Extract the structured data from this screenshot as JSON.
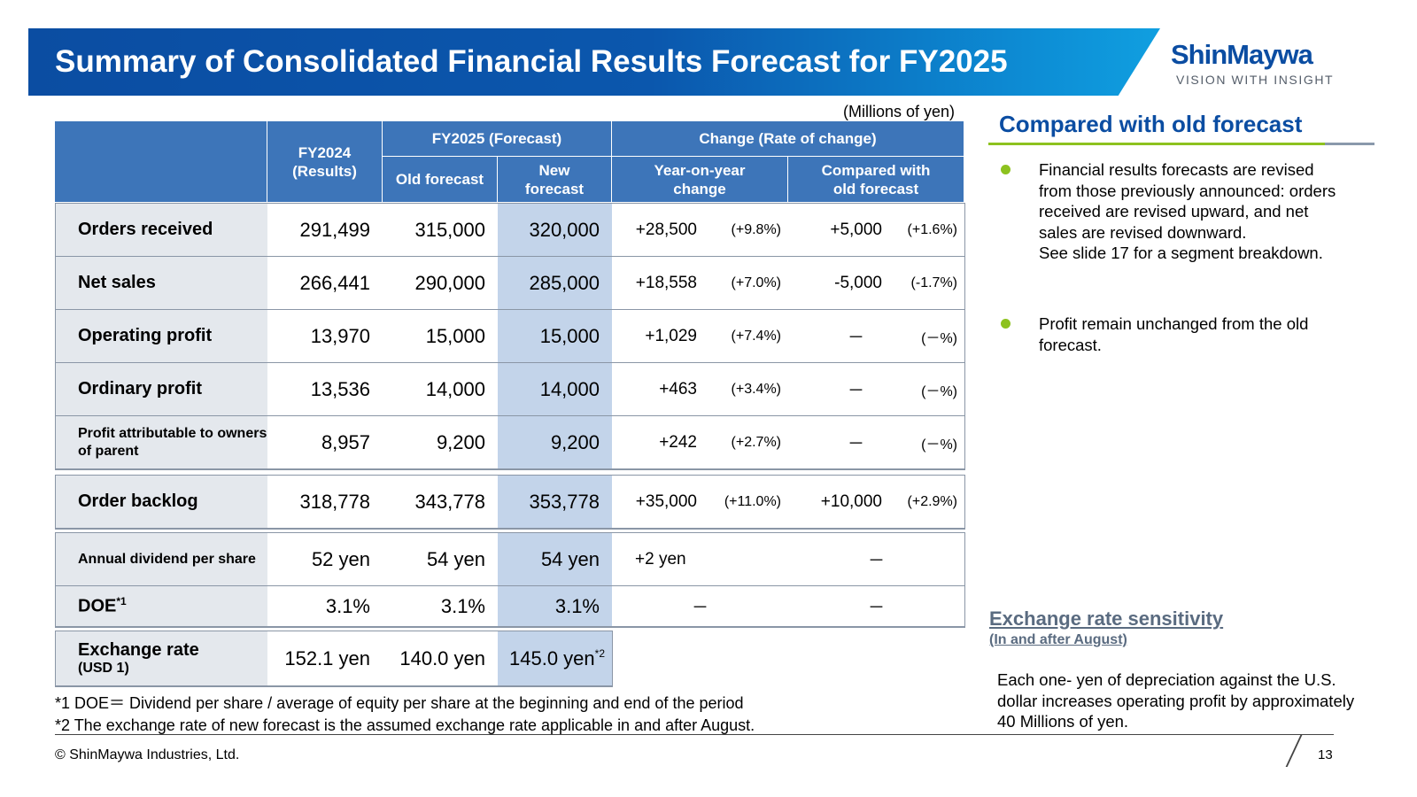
{
  "title": "Summary of Consolidated Financial Results Forecast for FY2025",
  "logo": {
    "name": "ShinMaywa",
    "tagline": "VISION WITH INSIGHT"
  },
  "units": "(Millions of yen)",
  "table": {
    "headers": {
      "fy2024": "FY2024\n(Results)",
      "fy2025": "FY2025 (Forecast)",
      "old": "Old forecast",
      "new": "New\nforecast",
      "change": "Change (Rate of change)",
      "yoy": "Year-on-year\nchange",
      "cmp": "Compared with\nold forecast"
    },
    "rows": [
      {
        "label": "Orders received",
        "fy2024": "291,499",
        "old": "315,000",
        "new": "320,000",
        "yoy": "+28,500",
        "yoy_pct": "(+9.8%)",
        "cmp": "+5,000",
        "cmp_pct": "(+1.6%)"
      },
      {
        "label": "Net sales",
        "fy2024": "266,441",
        "old": "290,000",
        "new": "285,000",
        "yoy": "+18,558",
        "yoy_pct": "(+7.0%)",
        "cmp": "-5,000",
        "cmp_pct": "(-1.7%)"
      },
      {
        "label": "Operating profit",
        "fy2024": "13,970",
        "old": "15,000",
        "new": "15,000",
        "yoy": "+1,029",
        "yoy_pct": "(+7.4%)",
        "cmp": "－",
        "cmp_pct": "(－%)"
      },
      {
        "label": "Ordinary profit",
        "fy2024": "13,536",
        "old": "14,000",
        "new": "14,000",
        "yoy": "+463",
        "yoy_pct": "(+3.4%)",
        "cmp": "－",
        "cmp_pct": "(－%)"
      },
      {
        "label": "Profit attributable to owners of parent",
        "fy2024": "8,957",
        "old": "9,200",
        "new": "9,200",
        "yoy": "+242",
        "yoy_pct": "(+2.7%)",
        "cmp": "－",
        "cmp_pct": "(－%)"
      },
      {
        "label": "Order backlog",
        "fy2024": "318,778",
        "old": "343,778",
        "new": "353,778",
        "yoy": "+35,000",
        "yoy_pct": "(+11.0%)",
        "cmp": "+10,000",
        "cmp_pct": "(+2.9%)"
      },
      {
        "label": "Annual dividend per share",
        "fy2024": "52 yen",
        "old": "54 yen",
        "new": "54 yen",
        "yoy": "+2 yen",
        "cmp": "－"
      },
      {
        "label": "DOE",
        "label_sup": "*1",
        "fy2024": "3.1%",
        "old": "3.1%",
        "new": "3.1%",
        "yoy": "－",
        "cmp": "－"
      },
      {
        "label": "Exchange rate",
        "label_sub": "(USD 1)",
        "fy2024": "152.1 yen",
        "old": "140.0 yen",
        "new": "145.0 yen",
        "new_sup": "*2"
      }
    ]
  },
  "notes": [
    "*1 DOE＝ Dividend per share / average of equity per share at the beginning and end of the period",
    "*2 The exchange rate of new forecast is the assumed exchange rate applicable in and after August."
  ],
  "right": {
    "title": "Compared with old forecast",
    "bullets": [
      "Financial results forecasts are revised from those previously announced: orders received are revised upward, and net sales are revised downward.\nSee slide 17 for a segment breakdown.",
      "Profit remain unchanged from the old forecast."
    ],
    "exchange_title": "Exchange rate sensitivity",
    "exchange_sub": "(In and after August)",
    "exchange_body": "Each one- yen of depreciation against the U.S. dollar increases operating profit by approximately 40 Millions of yen."
  },
  "footer": {
    "copyright": "© ShinMaywa Industries, Ltd.",
    "page": "13"
  },
  "colors": {
    "brand": "#0b4da2",
    "header": "#3d75b9",
    "new_col": "#c3d4ea",
    "accent": "#8dc21f"
  }
}
